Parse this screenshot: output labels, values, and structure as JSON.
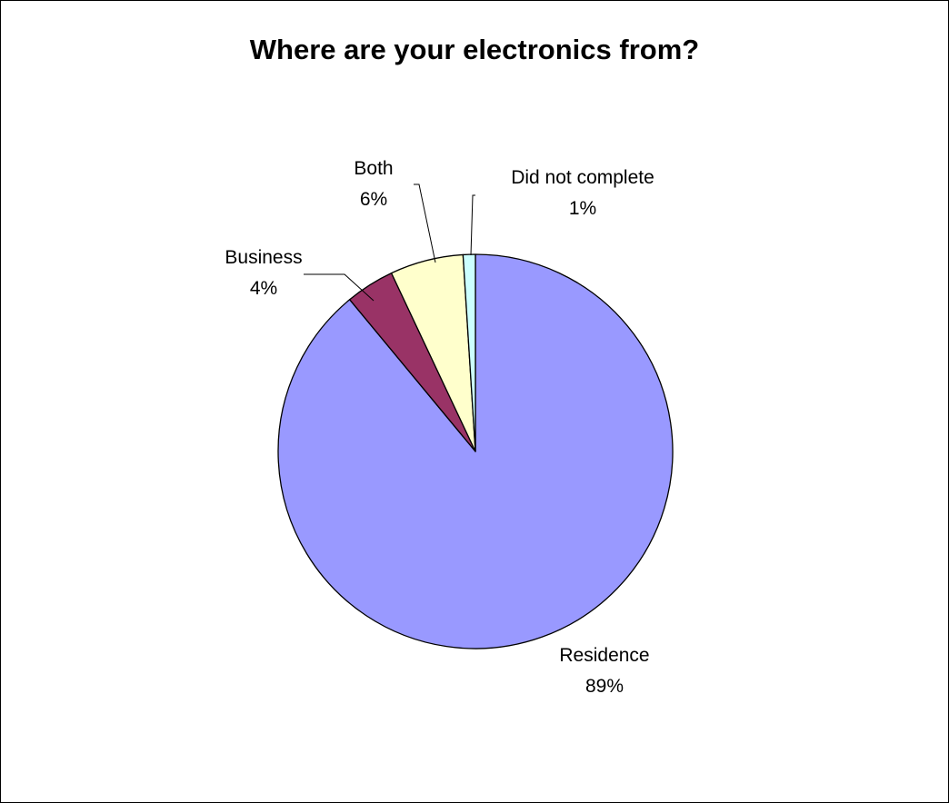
{
  "chart_data": {
    "type": "pie",
    "title": "Where are your electronics from?",
    "categories": [
      "Residence",
      "Business",
      "Both",
      "Did not complete"
    ],
    "values": [
      89,
      4,
      6,
      1
    ],
    "percent_labels": [
      "89%",
      "4%",
      "6%",
      "1%"
    ],
    "colors": [
      "#9999ff",
      "#993366",
      "#ffffcc",
      "#ccffff"
    ],
    "slice_order_clockwise_from_top": [
      "Residence",
      "Business",
      "Both",
      "Did not complete"
    ],
    "legend": "none",
    "data_labels": "category name and percentage"
  }
}
